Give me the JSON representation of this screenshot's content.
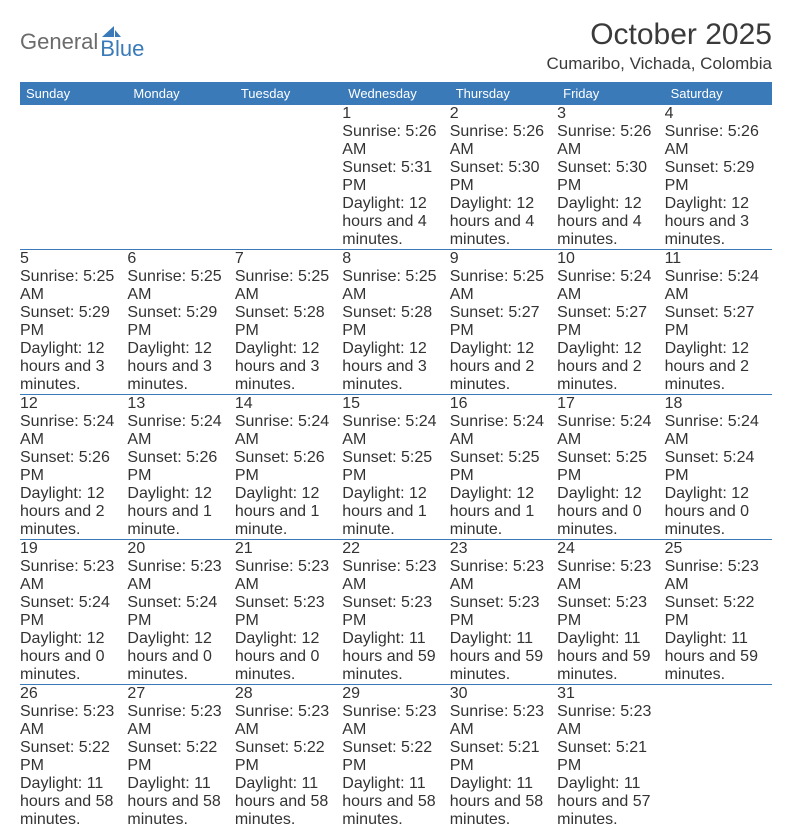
{
  "logo": {
    "word1": "General",
    "word2": "Blue"
  },
  "title": "October 2025",
  "location": "Cumaribo, Vichada, Colombia",
  "header_bg": "#3a7ab8",
  "daynum_bg": "#eeeeee",
  "page_bg": "#ffffff",
  "text_color": "#333333",
  "day_names": [
    "Sunday",
    "Monday",
    "Tuesday",
    "Wednesday",
    "Thursday",
    "Friday",
    "Saturday"
  ],
  "weeks": [
    [
      {
        "n": "",
        "sr": "",
        "ss": "",
        "dl": ""
      },
      {
        "n": "",
        "sr": "",
        "ss": "",
        "dl": ""
      },
      {
        "n": "",
        "sr": "",
        "ss": "",
        "dl": ""
      },
      {
        "n": "1",
        "sr": "Sunrise: 5:26 AM",
        "ss": "Sunset: 5:31 PM",
        "dl": "Daylight: 12 hours and 4 minutes."
      },
      {
        "n": "2",
        "sr": "Sunrise: 5:26 AM",
        "ss": "Sunset: 5:30 PM",
        "dl": "Daylight: 12 hours and 4 minutes."
      },
      {
        "n": "3",
        "sr": "Sunrise: 5:26 AM",
        "ss": "Sunset: 5:30 PM",
        "dl": "Daylight: 12 hours and 4 minutes."
      },
      {
        "n": "4",
        "sr": "Sunrise: 5:26 AM",
        "ss": "Sunset: 5:29 PM",
        "dl": "Daylight: 12 hours and 3 minutes."
      }
    ],
    [
      {
        "n": "5",
        "sr": "Sunrise: 5:25 AM",
        "ss": "Sunset: 5:29 PM",
        "dl": "Daylight: 12 hours and 3 minutes."
      },
      {
        "n": "6",
        "sr": "Sunrise: 5:25 AM",
        "ss": "Sunset: 5:29 PM",
        "dl": "Daylight: 12 hours and 3 minutes."
      },
      {
        "n": "7",
        "sr": "Sunrise: 5:25 AM",
        "ss": "Sunset: 5:28 PM",
        "dl": "Daylight: 12 hours and 3 minutes."
      },
      {
        "n": "8",
        "sr": "Sunrise: 5:25 AM",
        "ss": "Sunset: 5:28 PM",
        "dl": "Daylight: 12 hours and 3 minutes."
      },
      {
        "n": "9",
        "sr": "Sunrise: 5:25 AM",
        "ss": "Sunset: 5:27 PM",
        "dl": "Daylight: 12 hours and 2 minutes."
      },
      {
        "n": "10",
        "sr": "Sunrise: 5:24 AM",
        "ss": "Sunset: 5:27 PM",
        "dl": "Daylight: 12 hours and 2 minutes."
      },
      {
        "n": "11",
        "sr": "Sunrise: 5:24 AM",
        "ss": "Sunset: 5:27 PM",
        "dl": "Daylight: 12 hours and 2 minutes."
      }
    ],
    [
      {
        "n": "12",
        "sr": "Sunrise: 5:24 AM",
        "ss": "Sunset: 5:26 PM",
        "dl": "Daylight: 12 hours and 2 minutes."
      },
      {
        "n": "13",
        "sr": "Sunrise: 5:24 AM",
        "ss": "Sunset: 5:26 PM",
        "dl": "Daylight: 12 hours and 1 minute."
      },
      {
        "n": "14",
        "sr": "Sunrise: 5:24 AM",
        "ss": "Sunset: 5:26 PM",
        "dl": "Daylight: 12 hours and 1 minute."
      },
      {
        "n": "15",
        "sr": "Sunrise: 5:24 AM",
        "ss": "Sunset: 5:25 PM",
        "dl": "Daylight: 12 hours and 1 minute."
      },
      {
        "n": "16",
        "sr": "Sunrise: 5:24 AM",
        "ss": "Sunset: 5:25 PM",
        "dl": "Daylight: 12 hours and 1 minute."
      },
      {
        "n": "17",
        "sr": "Sunrise: 5:24 AM",
        "ss": "Sunset: 5:25 PM",
        "dl": "Daylight: 12 hours and 0 minutes."
      },
      {
        "n": "18",
        "sr": "Sunrise: 5:24 AM",
        "ss": "Sunset: 5:24 PM",
        "dl": "Daylight: 12 hours and 0 minutes."
      }
    ],
    [
      {
        "n": "19",
        "sr": "Sunrise: 5:23 AM",
        "ss": "Sunset: 5:24 PM",
        "dl": "Daylight: 12 hours and 0 minutes."
      },
      {
        "n": "20",
        "sr": "Sunrise: 5:23 AM",
        "ss": "Sunset: 5:24 PM",
        "dl": "Daylight: 12 hours and 0 minutes."
      },
      {
        "n": "21",
        "sr": "Sunrise: 5:23 AM",
        "ss": "Sunset: 5:23 PM",
        "dl": "Daylight: 12 hours and 0 minutes."
      },
      {
        "n": "22",
        "sr": "Sunrise: 5:23 AM",
        "ss": "Sunset: 5:23 PM",
        "dl": "Daylight: 11 hours and 59 minutes."
      },
      {
        "n": "23",
        "sr": "Sunrise: 5:23 AM",
        "ss": "Sunset: 5:23 PM",
        "dl": "Daylight: 11 hours and 59 minutes."
      },
      {
        "n": "24",
        "sr": "Sunrise: 5:23 AM",
        "ss": "Sunset: 5:23 PM",
        "dl": "Daylight: 11 hours and 59 minutes."
      },
      {
        "n": "25",
        "sr": "Sunrise: 5:23 AM",
        "ss": "Sunset: 5:22 PM",
        "dl": "Daylight: 11 hours and 59 minutes."
      }
    ],
    [
      {
        "n": "26",
        "sr": "Sunrise: 5:23 AM",
        "ss": "Sunset: 5:22 PM",
        "dl": "Daylight: 11 hours and 58 minutes."
      },
      {
        "n": "27",
        "sr": "Sunrise: 5:23 AM",
        "ss": "Sunset: 5:22 PM",
        "dl": "Daylight: 11 hours and 58 minutes."
      },
      {
        "n": "28",
        "sr": "Sunrise: 5:23 AM",
        "ss": "Sunset: 5:22 PM",
        "dl": "Daylight: 11 hours and 58 minutes."
      },
      {
        "n": "29",
        "sr": "Sunrise: 5:23 AM",
        "ss": "Sunset: 5:22 PM",
        "dl": "Daylight: 11 hours and 58 minutes."
      },
      {
        "n": "30",
        "sr": "Sunrise: 5:23 AM",
        "ss": "Sunset: 5:21 PM",
        "dl": "Daylight: 11 hours and 58 minutes."
      },
      {
        "n": "31",
        "sr": "Sunrise: 5:23 AM",
        "ss": "Sunset: 5:21 PM",
        "dl": "Daylight: 11 hours and 57 minutes."
      },
      {
        "n": "",
        "sr": "",
        "ss": "",
        "dl": ""
      }
    ]
  ]
}
